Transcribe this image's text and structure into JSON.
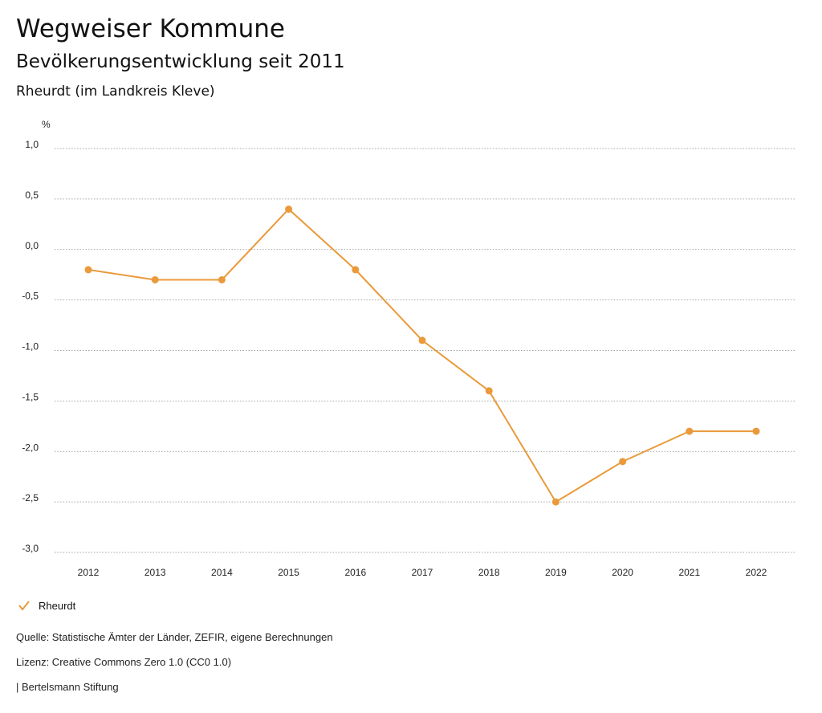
{
  "header": {
    "title": "Wegweiser Kommune",
    "subtitle": "Bevölkerungsentwicklung seit 2011",
    "region": "Rheurdt (im Landkreis Kleve)"
  },
  "chart_data": {
    "type": "line",
    "ylabel": "%",
    "ylim": [
      -3.0,
      1.0
    ],
    "yticks": [
      1.0,
      0.5,
      0.0,
      -0.5,
      -1.0,
      -1.5,
      -2.0,
      -2.5,
      -3.0
    ],
    "ytick_labels": [
      "1,0",
      "0,5",
      "0,0",
      "-0,5",
      "-1,0",
      "-1,5",
      "-2,0",
      "-2,5",
      "-3,0"
    ],
    "categories": [
      "2012",
      "2013",
      "2014",
      "2015",
      "2016",
      "2017",
      "2018",
      "2019",
      "2020",
      "2021",
      "2022"
    ],
    "series": [
      {
        "name": "Rheurdt",
        "color": "#ea9a3a",
        "values": [
          -0.2,
          -0.3,
          -0.3,
          0.4,
          -0.2,
          -0.9,
          -1.4,
          -2.5,
          -2.1,
          -1.8,
          -1.8
        ]
      }
    ],
    "grid": true,
    "legend_position": "bottom-left"
  },
  "legend": {
    "label": "Rheurdt",
    "icon": "check-icon"
  },
  "footer": {
    "source": "Quelle: Statistische Ämter der Länder, ZEFIR, eigene Berechnungen",
    "license": "Lizenz: Creative Commons Zero 1.0 (CC0 1.0)",
    "publisher": "| Bertelsmann Stiftung"
  }
}
